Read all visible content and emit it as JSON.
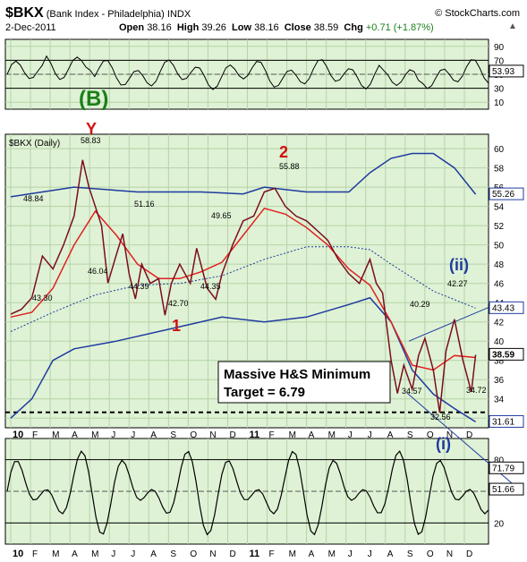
{
  "header": {
    "symbol": "$BKX",
    "name": "(Bank Index - Philadelphia)",
    "exchange": "INDX",
    "source": "© StockCharts.com",
    "date": "2-Dec-2011",
    "open_label": "Open",
    "open": "38.16",
    "high_label": "High",
    "high": "39.26",
    "low_label": "Low",
    "low": "38.16",
    "close_label": "Close",
    "close": "38.59",
    "chg_label": "Chg",
    "chg": "+0.71 (+1.87%)",
    "chg_arrow": "▲"
  },
  "colors": {
    "plot_bg": "#dff2d5",
    "price": "#7b0d1e",
    "ma_short": "#e02020",
    "bands": "#1f3a9f",
    "wave_green": "#1a7f1a",
    "wave_red": "#d01010",
    "wave_blue": "#1f3a9f"
  },
  "chart_data": [
    {
      "type": "line",
      "panel": "top oscillator",
      "y_ticks": [
        "90",
        "70",
        "50",
        "30",
        "10"
      ],
      "ylim": [
        0,
        100
      ],
      "current_value": "53.93",
      "reference_lines": [
        70,
        30
      ]
    },
    {
      "type": "line",
      "panel": "price",
      "title": "$BKX (Daily)",
      "y_ticks": [
        "60",
        "58",
        "56",
        "54",
        "52",
        "50",
        "48",
        "46",
        "44",
        "42",
        "40",
        "38",
        "36",
        "34",
        "32"
      ],
      "ylim": [
        31,
        61.5
      ],
      "x_ticks": [
        "10",
        "F",
        "M",
        "A",
        "M",
        "J",
        "J",
        "A",
        "S",
        "O",
        "N",
        "D",
        "11",
        "F",
        "M",
        "A",
        "M",
        "J",
        "J",
        "A",
        "S",
        "O",
        "N",
        "D"
      ],
      "series": [
        {
          "values": [
            [
              0,
              42.8
            ],
            [
              0.5,
              43.3
            ],
            [
              1,
              44.5
            ],
            [
              1.5,
              48.84
            ],
            [
              2,
              47.5
            ],
            [
              2.5,
              50
            ],
            [
              3,
              53
            ],
            [
              3.4,
              58.83
            ],
            [
              3.7,
              56
            ],
            [
              4,
              54
            ],
            [
              4.3,
              52
            ],
            [
              4.6,
              46.04
            ],
            [
              5,
              49
            ],
            [
              5.3,
              51.16
            ],
            [
              5.6,
              47
            ],
            [
              5.9,
              44.39
            ],
            [
              6.2,
              48
            ],
            [
              6.6,
              46
            ],
            [
              7,
              46.5
            ],
            [
              7.3,
              42.7
            ],
            [
              7.6,
              46
            ],
            [
              8,
              48
            ],
            [
              8.5,
              46
            ],
            [
              8.8,
              49.65
            ],
            [
              9.3,
              45.5
            ],
            [
              9.7,
              44.35
            ],
            [
              10,
              47
            ],
            [
              10.5,
              50
            ],
            [
              11,
              52.5
            ],
            [
              11.5,
              53
            ],
            [
              12,
              55.5
            ],
            [
              12.5,
              55.88
            ],
            [
              13,
              54
            ],
            [
              13.5,
              53
            ],
            [
              14,
              52.5
            ],
            [
              14.5,
              51.5
            ],
            [
              15,
              50.5
            ],
            [
              15.5,
              48.5
            ],
            [
              16,
              47
            ],
            [
              16.5,
              46
            ],
            [
              17,
              48.5
            ],
            [
              17.3,
              46
            ],
            [
              17.6,
              45
            ],
            [
              18,
              38
            ],
            [
              18.3,
              34.57
            ],
            [
              18.6,
              37.5
            ],
            [
              19,
              35
            ],
            [
              19.3,
              38.5
            ],
            [
              19.6,
              40.29
            ],
            [
              20,
              37
            ],
            [
              20.3,
              32.56
            ],
            [
              20.6,
              39
            ],
            [
              21,
              42.27
            ],
            [
              21.4,
              38
            ],
            [
              21.8,
              34.72
            ],
            [
              22,
              38.59
            ]
          ]
        },
        {
          "values": [
            [
              0,
              42.5
            ],
            [
              1,
              43
            ],
            [
              2,
              45.5
            ],
            [
              3,
              50
            ],
            [
              4,
              53.5
            ],
            [
              5,
              51
            ],
            [
              6,
              48
            ],
            [
              7,
              46.5
            ],
            [
              8,
              46.5
            ],
            [
              9,
              47.2
            ],
            [
              10,
              48.2
            ],
            [
              11,
              51
            ],
            [
              12,
              53.8
            ],
            [
              13,
              53.2
            ],
            [
              14,
              51.8
            ],
            [
              15,
              50
            ],
            [
              16,
              47.5
            ],
            [
              17,
              45.8
            ],
            [
              18,
              42
            ],
            [
              19,
              37.5
            ],
            [
              20,
              37
            ],
            [
              21,
              38.5
            ],
            [
              22,
              38.3
            ]
          ]
        },
        {
          "values": [
            [
              0,
              41
            ],
            [
              2,
              43
            ],
            [
              4,
              44.8
            ],
            [
              6,
              45.8
            ],
            [
              8,
              46
            ],
            [
              10,
              46.8
            ],
            [
              12,
              48.5
            ],
            [
              14,
              49.8
            ],
            [
              16,
              49.8
            ],
            [
              17,
              49.5
            ],
            [
              18,
              48
            ],
            [
              20,
              45.2
            ],
            [
              22,
              43.43
            ]
          ]
        },
        {
          "values": [
            [
              0,
              55
            ],
            [
              3,
              56
            ],
            [
              6,
              55.5
            ],
            [
              9,
              55.5
            ],
            [
              11,
              55.3
            ],
            [
              12,
              56
            ],
            [
              14,
              55.5
            ],
            [
              16,
              55.5
            ],
            [
              17,
              57.5
            ],
            [
              18,
              59
            ],
            [
              19,
              59.5
            ],
            [
              20,
              59.5
            ],
            [
              21,
              58
            ],
            [
              22,
              55.26
            ]
          ]
        },
        {
          "values": [
            [
              0,
              32
            ],
            [
              1,
              34
            ],
            [
              2,
              38
            ],
            [
              3,
              39.2
            ],
            [
              5,
              40
            ],
            [
              8,
              41.5
            ],
            [
              10,
              42.5
            ],
            [
              12,
              42
            ],
            [
              14,
              42.5
            ],
            [
              16,
              43.8
            ],
            [
              17,
              44.5
            ],
            [
              18,
              42
            ],
            [
              19,
              37
            ],
            [
              20,
              34.5
            ],
            [
              21,
              33
            ],
            [
              22,
              31.61
            ]
          ]
        }
      ],
      "price_labels": [
        "58.83",
        "48.84",
        "43.30",
        "46.04",
        "51.16",
        "44.39",
        "42.70",
        "49.65",
        "44.35",
        "55.88",
        "40.29",
        "42.27",
        "34.57",
        "32.56",
        "34.72"
      ],
      "wave_labels": [
        "(B)",
        "Y",
        "1",
        "2",
        "(i)",
        "(ii)"
      ],
      "annotation_lines": [
        "Massive H&S Minimum",
        "Target = 6.79"
      ],
      "right_labels": [
        "55.26",
        "43.43",
        "38.59",
        "31.61"
      ]
    },
    {
      "type": "line",
      "panel": "bottom oscillator",
      "y_ticks": [
        "80",
        "50",
        "20"
      ],
      "ylim": [
        0,
        100
      ],
      "right_labels": [
        "71.79",
        "51.66"
      ]
    }
  ]
}
